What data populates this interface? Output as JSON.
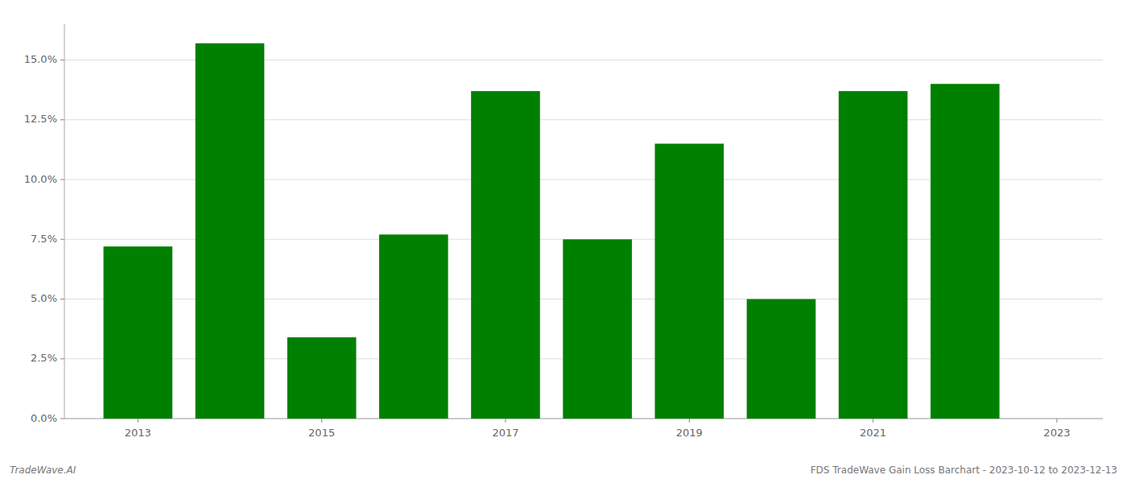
{
  "chart_data": {
    "type": "bar",
    "x": [
      2013,
      2014,
      2015,
      2016,
      2017,
      2018,
      2019,
      2020,
      2021,
      2022
    ],
    "values": [
      0.072,
      0.157,
      0.034,
      0.077,
      0.137,
      0.075,
      0.115,
      0.05,
      0.137,
      0.14
    ],
    "color": "#008000",
    "xlim": [
      2012.2,
      2023.5
    ],
    "xticks": [
      2013,
      2015,
      2017,
      2019,
      2021,
      2023
    ],
    "ylim": [
      0,
      0.165
    ],
    "yticks": [
      {
        "value": 0.0,
        "label": "0.0%"
      },
      {
        "value": 0.025,
        "label": "2.5%"
      },
      {
        "value": 0.05,
        "label": "5.0%"
      },
      {
        "value": 0.075,
        "label": "7.5%"
      },
      {
        "value": 0.1,
        "label": "10.0%"
      },
      {
        "value": 0.125,
        "label": "12.5%"
      },
      {
        "value": 0.15,
        "label": "15.0%"
      }
    ],
    "grid": true,
    "annotations": [
      "TradeWave.AI",
      "FDS TradeWave Gain Loss Barchart - 2023-10-12 to 2023-12-13"
    ]
  }
}
